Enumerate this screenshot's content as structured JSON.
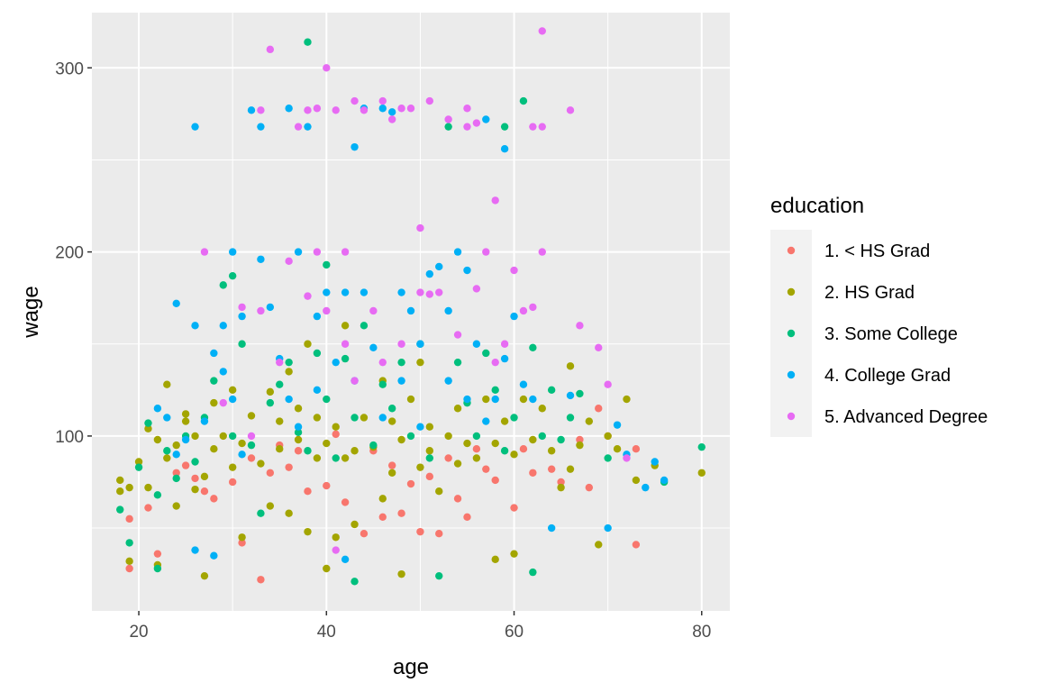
{
  "chart_data": {
    "type": "scatter",
    "xlabel": "age",
    "ylabel": "wage",
    "xlim": [
      15,
      83
    ],
    "ylim": [
      5,
      330
    ],
    "x_ticks": [
      20,
      40,
      60,
      80
    ],
    "y_ticks": [
      100,
      200,
      300
    ],
    "grid": true,
    "legend": {
      "title": "education",
      "placement": "right"
    },
    "series": [
      {
        "name": "1. < HS Grad",
        "color": "#F8766D",
        "points": [
          [
            19,
            28
          ],
          [
            19,
            55
          ],
          [
            21,
            61
          ],
          [
            22,
            36
          ],
          [
            24,
            80
          ],
          [
            25,
            84
          ],
          [
            26,
            77
          ],
          [
            27,
            70
          ],
          [
            28,
            66
          ],
          [
            30,
            75
          ],
          [
            31,
            42
          ],
          [
            32,
            88
          ],
          [
            33,
            22
          ],
          [
            34,
            80
          ],
          [
            35,
            95
          ],
          [
            36,
            83
          ],
          [
            37,
            92
          ],
          [
            38,
            70
          ],
          [
            40,
            73
          ],
          [
            41,
            101
          ],
          [
            42,
            64
          ],
          [
            44,
            47
          ],
          [
            45,
            92
          ],
          [
            46,
            56
          ],
          [
            47,
            84
          ],
          [
            48,
            58
          ],
          [
            49,
            74
          ],
          [
            50,
            48
          ],
          [
            51,
            78
          ],
          [
            52,
            47
          ],
          [
            53,
            88
          ],
          [
            54,
            66
          ],
          [
            55,
            56
          ],
          [
            56,
            93
          ],
          [
            57,
            82
          ],
          [
            58,
            76
          ],
          [
            60,
            61
          ],
          [
            61,
            93
          ],
          [
            62,
            80
          ],
          [
            64,
            82
          ],
          [
            65,
            75
          ],
          [
            67,
            98
          ],
          [
            68,
            72
          ],
          [
            69,
            115
          ],
          [
            70,
            100
          ],
          [
            73,
            41
          ],
          [
            73,
            93
          ]
        ]
      },
      {
        "name": "2. HS Grad",
        "color": "#A3A500",
        "points": [
          [
            18,
            76
          ],
          [
            18,
            70
          ],
          [
            19,
            32
          ],
          [
            19,
            72
          ],
          [
            20,
            86
          ],
          [
            21,
            104
          ],
          [
            21,
            72
          ],
          [
            22,
            98
          ],
          [
            22,
            30
          ],
          [
            23,
            128
          ],
          [
            23,
            88
          ],
          [
            24,
            95
          ],
          [
            24,
            62
          ],
          [
            25,
            108
          ],
          [
            25,
            112
          ],
          [
            26,
            71
          ],
          [
            26,
            100
          ],
          [
            27,
            24
          ],
          [
            27,
            78
          ],
          [
            28,
            93
          ],
          [
            28,
            118
          ],
          [
            29,
            100
          ],
          [
            30,
            125
          ],
          [
            30,
            83
          ],
          [
            31,
            96
          ],
          [
            31,
            45
          ],
          [
            32,
            111
          ],
          [
            33,
            85
          ],
          [
            34,
            124
          ],
          [
            34,
            62
          ],
          [
            35,
            93
          ],
          [
            35,
            108
          ],
          [
            36,
            135
          ],
          [
            36,
            58
          ],
          [
            37,
            115
          ],
          [
            37,
            98
          ],
          [
            38,
            150
          ],
          [
            38,
            48
          ],
          [
            39,
            88
          ],
          [
            39,
            110
          ],
          [
            40,
            96
          ],
          [
            40,
            28
          ],
          [
            41,
            105
          ],
          [
            41,
            45
          ],
          [
            42,
            160
          ],
          [
            42,
            88
          ],
          [
            43,
            92
          ],
          [
            43,
            52
          ],
          [
            44,
            110
          ],
          [
            45,
            94
          ],
          [
            46,
            130
          ],
          [
            46,
            66
          ],
          [
            47,
            80
          ],
          [
            47,
            108
          ],
          [
            48,
            25
          ],
          [
            48,
            98
          ],
          [
            49,
            120
          ],
          [
            50,
            83
          ],
          [
            50,
            140
          ],
          [
            51,
            105
          ],
          [
            51,
            92
          ],
          [
            52,
            70
          ],
          [
            53,
            100
          ],
          [
            54,
            115
          ],
          [
            54,
            85
          ],
          [
            55,
            96
          ],
          [
            56,
            88
          ],
          [
            57,
            120
          ],
          [
            58,
            96
          ],
          [
            58,
            33
          ],
          [
            59,
            108
          ],
          [
            60,
            36
          ],
          [
            60,
            90
          ],
          [
            61,
            120
          ],
          [
            62,
            98
          ],
          [
            63,
            115
          ],
          [
            64,
            92
          ],
          [
            65,
            72
          ],
          [
            66,
            138
          ],
          [
            66,
            82
          ],
          [
            67,
            95
          ],
          [
            68,
            108
          ],
          [
            69,
            41
          ],
          [
            70,
            100
          ],
          [
            71,
            93
          ],
          [
            72,
            120
          ],
          [
            73,
            76
          ],
          [
            75,
            84
          ],
          [
            80,
            80
          ]
        ]
      },
      {
        "name": "3. Some College",
        "color": "#00BF7D",
        "points": [
          [
            18,
            60
          ],
          [
            19,
            42
          ],
          [
            20,
            83
          ],
          [
            21,
            107
          ],
          [
            22,
            28
          ],
          [
            22,
            68
          ],
          [
            23,
            92
          ],
          [
            24,
            77
          ],
          [
            25,
            100
          ],
          [
            26,
            86
          ],
          [
            27,
            110
          ],
          [
            28,
            130
          ],
          [
            29,
            182
          ],
          [
            30,
            187
          ],
          [
            30,
            100
          ],
          [
            31,
            150
          ],
          [
            32,
            95
          ],
          [
            33,
            58
          ],
          [
            34,
            118
          ],
          [
            35,
            128
          ],
          [
            36,
            140
          ],
          [
            37,
            102
          ],
          [
            38,
            314
          ],
          [
            38,
            92
          ],
          [
            39,
            145
          ],
          [
            40,
            193
          ],
          [
            40,
            120
          ],
          [
            41,
            88
          ],
          [
            42,
            142
          ],
          [
            43,
            21
          ],
          [
            43,
            110
          ],
          [
            44,
            160
          ],
          [
            45,
            95
          ],
          [
            46,
            128
          ],
          [
            47,
            115
          ],
          [
            48,
            140
          ],
          [
            49,
            100
          ],
          [
            50,
            150
          ],
          [
            51,
            88
          ],
          [
            52,
            24
          ],
          [
            53,
            268
          ],
          [
            54,
            140
          ],
          [
            55,
            118
          ],
          [
            56,
            100
          ],
          [
            57,
            145
          ],
          [
            58,
            125
          ],
          [
            59,
            268
          ],
          [
            59,
            92
          ],
          [
            60,
            110
          ],
          [
            61,
            282
          ],
          [
            62,
            26
          ],
          [
            62,
            148
          ],
          [
            63,
            100
          ],
          [
            64,
            125
          ],
          [
            65,
            98
          ],
          [
            66,
            110
          ],
          [
            67,
            123
          ],
          [
            70,
            88
          ],
          [
            76,
            75
          ],
          [
            80,
            94
          ]
        ]
      },
      {
        "name": "4. College Grad",
        "color": "#00B0F6",
        "points": [
          [
            22,
            115
          ],
          [
            23,
            110
          ],
          [
            24,
            172
          ],
          [
            24,
            90
          ],
          [
            25,
            98
          ],
          [
            26,
            268
          ],
          [
            26,
            160
          ],
          [
            26,
            38
          ],
          [
            27,
            108
          ],
          [
            28,
            35
          ],
          [
            28,
            145
          ],
          [
            29,
            135
          ],
          [
            29,
            160
          ],
          [
            30,
            200
          ],
          [
            30,
            120
          ],
          [
            31,
            165
          ],
          [
            31,
            90
          ],
          [
            32,
            277
          ],
          [
            33,
            268
          ],
          [
            33,
            196
          ],
          [
            34,
            170
          ],
          [
            35,
            142
          ],
          [
            36,
            278
          ],
          [
            36,
            120
          ],
          [
            37,
            200
          ],
          [
            37,
            105
          ],
          [
            38,
            268
          ],
          [
            39,
            165
          ],
          [
            39,
            125
          ],
          [
            40,
            178
          ],
          [
            41,
            140
          ],
          [
            42,
            33
          ],
          [
            42,
            178
          ],
          [
            43,
            257
          ],
          [
            43,
            130
          ],
          [
            44,
            278
          ],
          [
            44,
            178
          ],
          [
            45,
            148
          ],
          [
            46,
            278
          ],
          [
            46,
            110
          ],
          [
            47,
            276
          ],
          [
            48,
            178
          ],
          [
            48,
            130
          ],
          [
            49,
            168
          ],
          [
            50,
            150
          ],
          [
            50,
            105
          ],
          [
            51,
            188
          ],
          [
            52,
            192
          ],
          [
            53,
            168
          ],
          [
            53,
            130
          ],
          [
            54,
            200
          ],
          [
            55,
            190
          ],
          [
            55,
            120
          ],
          [
            56,
            150
          ],
          [
            57,
            272
          ],
          [
            57,
            108
          ],
          [
            58,
            120
          ],
          [
            59,
            256
          ],
          [
            59,
            142
          ],
          [
            60,
            165
          ],
          [
            61,
            128
          ],
          [
            62,
            120
          ],
          [
            64,
            50
          ],
          [
            66,
            122
          ],
          [
            70,
            50
          ],
          [
            71,
            106
          ],
          [
            72,
            90
          ],
          [
            74,
            72
          ],
          [
            75,
            86
          ],
          [
            76,
            76
          ]
        ]
      },
      {
        "name": "5. Advanced Degree",
        "color": "#E76BF3",
        "points": [
          [
            27,
            200
          ],
          [
            29,
            118
          ],
          [
            31,
            170
          ],
          [
            32,
            100
          ],
          [
            33,
            277
          ],
          [
            33,
            168
          ],
          [
            34,
            310
          ],
          [
            35,
            140
          ],
          [
            36,
            195
          ],
          [
            37,
            268
          ],
          [
            38,
            277
          ],
          [
            38,
            176
          ],
          [
            39,
            278
          ],
          [
            39,
            200
          ],
          [
            40,
            300
          ],
          [
            40,
            168
          ],
          [
            41,
            277
          ],
          [
            41,
            38
          ],
          [
            42,
            200
          ],
          [
            42,
            150
          ],
          [
            43,
            282
          ],
          [
            43,
            130
          ],
          [
            44,
            277
          ],
          [
            45,
            168
          ],
          [
            46,
            282
          ],
          [
            46,
            140
          ],
          [
            47,
            272
          ],
          [
            48,
            278
          ],
          [
            48,
            150
          ],
          [
            49,
            278
          ],
          [
            50,
            213
          ],
          [
            50,
            178
          ],
          [
            51,
            282
          ],
          [
            51,
            177
          ],
          [
            52,
            178
          ],
          [
            53,
            272
          ],
          [
            54,
            155
          ],
          [
            55,
            278
          ],
          [
            55,
            268
          ],
          [
            56,
            270
          ],
          [
            56,
            180
          ],
          [
            57,
            200
          ],
          [
            58,
            228
          ],
          [
            58,
            140
          ],
          [
            59,
            150
          ],
          [
            60,
            190
          ],
          [
            61,
            168
          ],
          [
            62,
            268
          ],
          [
            62,
            170
          ],
          [
            63,
            320
          ],
          [
            63,
            268
          ],
          [
            63,
            200
          ],
          [
            66,
            277
          ],
          [
            67,
            160
          ],
          [
            69,
            148
          ],
          [
            70,
            128
          ],
          [
            72,
            88
          ]
        ]
      }
    ]
  }
}
